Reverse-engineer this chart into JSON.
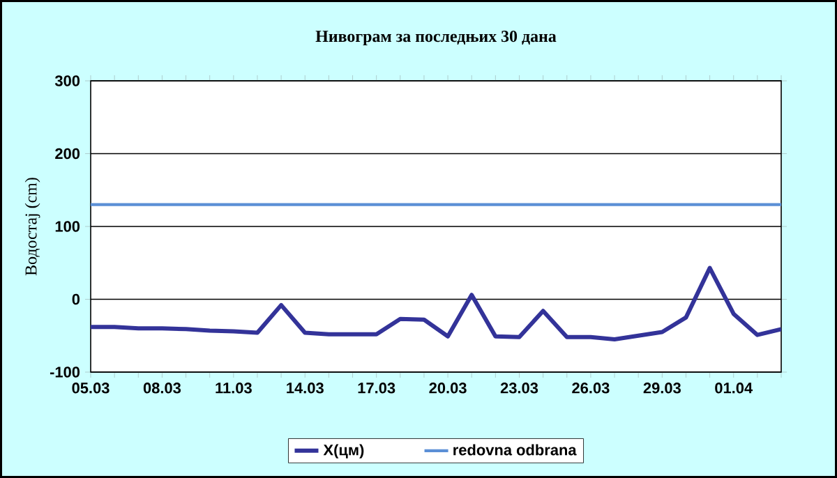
{
  "chart_data": {
    "type": "line",
    "title": "Нивограм за последњих 30 дана",
    "ylabel": "Водостај (cm)",
    "categories": [
      "05.03",
      null,
      null,
      "08.03",
      null,
      null,
      "11.03",
      null,
      null,
      "14.03",
      null,
      null,
      "17.03",
      null,
      null,
      "20.03",
      null,
      null,
      "23.03",
      null,
      null,
      "26.03",
      null,
      null,
      "29.03",
      null,
      null,
      "01.04",
      null,
      null
    ],
    "series": [
      {
        "name": "X(цм)",
        "color": "#333399",
        "values": [
          -38,
          -38,
          -40,
          -40,
          -41,
          -43,
          -44,
          -46,
          -8,
          -46,
          -48,
          -48,
          -48,
          -27,
          -28,
          -51,
          6,
          -51,
          -52,
          -16,
          -52,
          -52,
          -55,
          -50,
          -45,
          -25,
          43,
          -20,
          -49,
          -41
        ]
      }
    ],
    "ylim": [
      -100,
      300
    ],
    "yticks": [
      -100,
      0,
      100,
      200,
      300
    ],
    "grid": "y",
    "legend": "bottom",
    "ref_lines": [
      {
        "axis": "y",
        "value": 130,
        "label": "redovna odbrana",
        "color": "#5b8fd6"
      }
    ]
  }
}
